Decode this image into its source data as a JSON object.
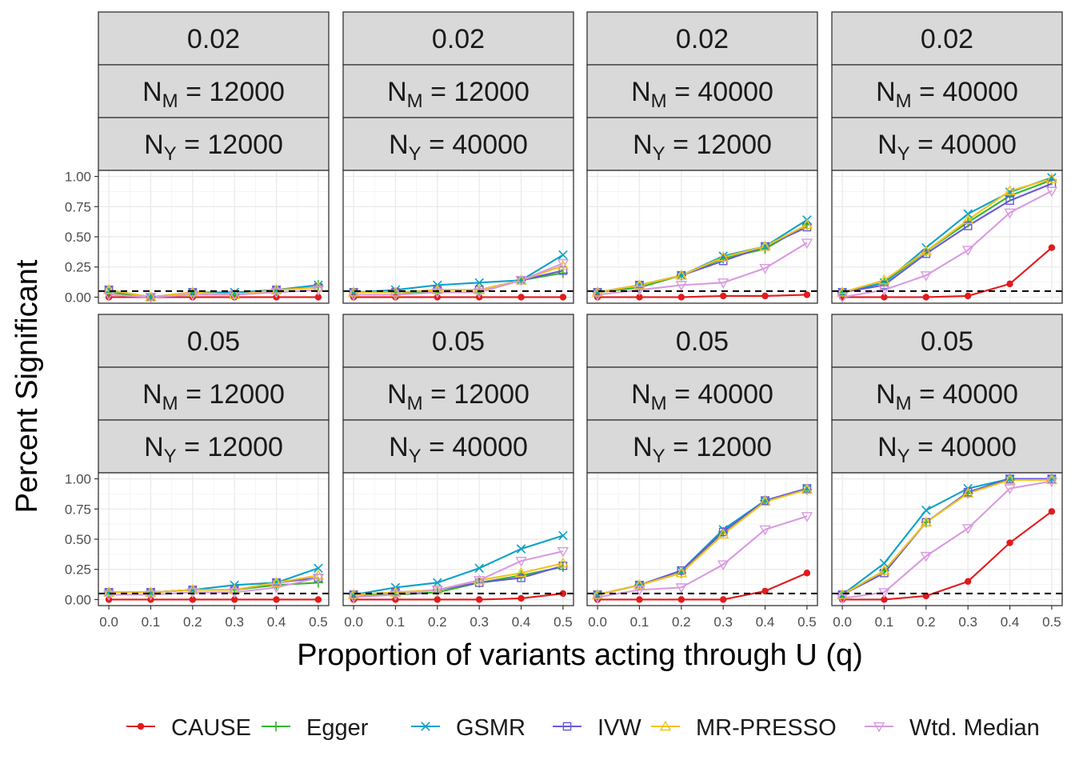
{
  "chart_data": {
    "type": "line",
    "xlabel": "Proportion of variants acting through U (q)",
    "ylabel": "Percent Significant",
    "x": [
      0.0,
      0.1,
      0.2,
      0.3,
      0.4,
      0.5
    ],
    "x_ticks": [
      "0.0",
      "0.1",
      "0.2",
      "0.3",
      "0.4",
      "0.5"
    ],
    "y_ticks": [
      "0.00",
      "0.25",
      "0.50",
      "0.75",
      "1.00"
    ],
    "xlim": [
      -0.025,
      0.525
    ],
    "ylim": [
      -0.05,
      1.05
    ],
    "reference_line": 0.05,
    "grid": true,
    "legend_position": "bottom",
    "methods": [
      {
        "name": "CAUSE",
        "color": "#e31a1c",
        "marker": "circle"
      },
      {
        "name": "Egger",
        "color": "#33b52d",
        "marker": "plus"
      },
      {
        "name": "GSMR",
        "color": "#0aa1c8",
        "marker": "cross"
      },
      {
        "name": "IVW",
        "color": "#6659d9",
        "marker": "square"
      },
      {
        "name": "MR-PRESSO",
        "color": "#f2c31b",
        "marker": "triangle-up"
      },
      {
        "name": "Wtd. Median",
        "color": "#d99ae0",
        "marker": "triangle-down"
      }
    ],
    "panels": [
      {
        "strip": [
          "0.02",
          "12000",
          "12000"
        ],
        "series": {
          "CAUSE": [
            0,
            0,
            0,
            0,
            0,
            0
          ],
          "Egger": [
            0.04,
            0.0,
            0.04,
            0.02,
            0.06,
            0.1
          ],
          "GSMR": [
            0.06,
            0.0,
            0.04,
            0.04,
            0.06,
            0.1
          ],
          "IVW": [
            0.06,
            0.0,
            0.04,
            0.02,
            0.06,
            0.08
          ],
          "MR-PRESSO": [
            0.06,
            0.0,
            0.04,
            0.02,
            0.06,
            0.08
          ],
          "Wtd. Median": [
            0.02,
            0.0,
            0.02,
            0.02,
            0.04,
            0.06
          ]
        }
      },
      {
        "strip": [
          "0.02",
          "12000",
          "40000"
        ],
        "series": {
          "CAUSE": [
            0,
            0,
            0,
            0,
            0,
            0
          ],
          "Egger": [
            0.04,
            0.04,
            0.04,
            0.04,
            0.14,
            0.2
          ],
          "GSMR": [
            0.04,
            0.06,
            0.1,
            0.12,
            0.14,
            0.35
          ],
          "IVW": [
            0.04,
            0.04,
            0.06,
            0.06,
            0.14,
            0.22
          ],
          "MR-PRESSO": [
            0.04,
            0.04,
            0.06,
            0.06,
            0.14,
            0.26
          ],
          "Wtd. Median": [
            0.02,
            0.02,
            0.04,
            0.04,
            0.14,
            0.28
          ]
        }
      },
      {
        "strip": [
          "0.02",
          "40000",
          "12000"
        ],
        "series": {
          "CAUSE": [
            0,
            0,
            0,
            0.01,
            0.01,
            0.02
          ],
          "Egger": [
            0.04,
            0.08,
            0.18,
            0.32,
            0.4,
            0.6
          ],
          "GSMR": [
            0.04,
            0.1,
            0.18,
            0.34,
            0.42,
            0.64
          ],
          "IVW": [
            0.04,
            0.1,
            0.18,
            0.3,
            0.42,
            0.58
          ],
          "MR-PRESSO": [
            0.04,
            0.1,
            0.18,
            0.33,
            0.42,
            0.6
          ],
          "Wtd. Median": [
            0.02,
            0.06,
            0.1,
            0.12,
            0.24,
            0.45
          ]
        }
      },
      {
        "strip": [
          "0.02",
          "40000",
          "40000"
        ],
        "series": {
          "CAUSE": [
            0,
            0,
            0,
            0.01,
            0.11,
            0.41
          ],
          "Egger": [
            0.04,
            0.12,
            0.38,
            0.62,
            0.84,
            0.97
          ],
          "GSMR": [
            0.04,
            0.12,
            0.41,
            0.69,
            0.87,
            0.99
          ],
          "IVW": [
            0.04,
            0.1,
            0.36,
            0.59,
            0.8,
            0.94
          ],
          "MR-PRESSO": [
            0.04,
            0.14,
            0.38,
            0.64,
            0.88,
            0.98
          ],
          "Wtd. Median": [
            0.0,
            0.06,
            0.18,
            0.39,
            0.7,
            0.88
          ]
        }
      },
      {
        "strip": [
          "0.05",
          "12000",
          "12000"
        ],
        "series": {
          "CAUSE": [
            0,
            0,
            0,
            0,
            0,
            0
          ],
          "Egger": [
            0.06,
            0.06,
            0.08,
            0.08,
            0.12,
            0.14
          ],
          "GSMR": [
            0.06,
            0.06,
            0.08,
            0.12,
            0.14,
            0.26
          ],
          "IVW": [
            0.06,
            0.06,
            0.08,
            0.08,
            0.14,
            0.18
          ],
          "MR-PRESSO": [
            0.06,
            0.06,
            0.08,
            0.08,
            0.14,
            0.2
          ],
          "Wtd. Median": [
            0.04,
            0.04,
            0.06,
            0.06,
            0.1,
            0.18
          ]
        }
      },
      {
        "strip": [
          "0.05",
          "12000",
          "40000"
        ],
        "series": {
          "CAUSE": [
            0,
            0,
            0,
            0,
            0.01,
            0.05
          ],
          "Egger": [
            0.04,
            0.04,
            0.06,
            0.14,
            0.2,
            0.27
          ],
          "GSMR": [
            0.04,
            0.1,
            0.14,
            0.26,
            0.42,
            0.53
          ],
          "IVW": [
            0.04,
            0.06,
            0.08,
            0.14,
            0.18,
            0.28
          ],
          "MR-PRESSO": [
            0.04,
            0.06,
            0.08,
            0.16,
            0.22,
            0.3
          ],
          "Wtd. Median": [
            0.02,
            0.04,
            0.08,
            0.16,
            0.32,
            0.4
          ]
        }
      },
      {
        "strip": [
          "0.05",
          "40000",
          "12000"
        ],
        "series": {
          "CAUSE": [
            0,
            0,
            0,
            0,
            0.07,
            0.22
          ],
          "Egger": [
            0.04,
            0.12,
            0.22,
            0.56,
            0.82,
            0.91
          ],
          "GSMR": [
            0.04,
            0.12,
            0.24,
            0.58,
            0.82,
            0.92
          ],
          "IVW": [
            0.04,
            0.12,
            0.24,
            0.56,
            0.82,
            0.92
          ],
          "MR-PRESSO": [
            0.04,
            0.12,
            0.22,
            0.54,
            0.81,
            0.91
          ],
          "Wtd. Median": [
            0.02,
            0.08,
            0.1,
            0.29,
            0.58,
            0.69
          ]
        }
      },
      {
        "strip": [
          "0.05",
          "40000",
          "40000"
        ],
        "series": {
          "CAUSE": [
            0,
            0,
            0.03,
            0.15,
            0.47,
            0.73
          ],
          "Egger": [
            0.04,
            0.24,
            0.64,
            0.88,
            1.0,
            1.0
          ],
          "GSMR": [
            0.04,
            0.3,
            0.74,
            0.92,
            1.0,
            1.0
          ],
          "IVW": [
            0.04,
            0.22,
            0.64,
            0.89,
            1.0,
            1.0
          ],
          "MR-PRESSO": [
            0.04,
            0.24,
            0.64,
            0.88,
            0.99,
            0.99
          ],
          "Wtd. Median": [
            0.01,
            0.06,
            0.36,
            0.59,
            0.92,
            0.98
          ]
        }
      }
    ]
  }
}
